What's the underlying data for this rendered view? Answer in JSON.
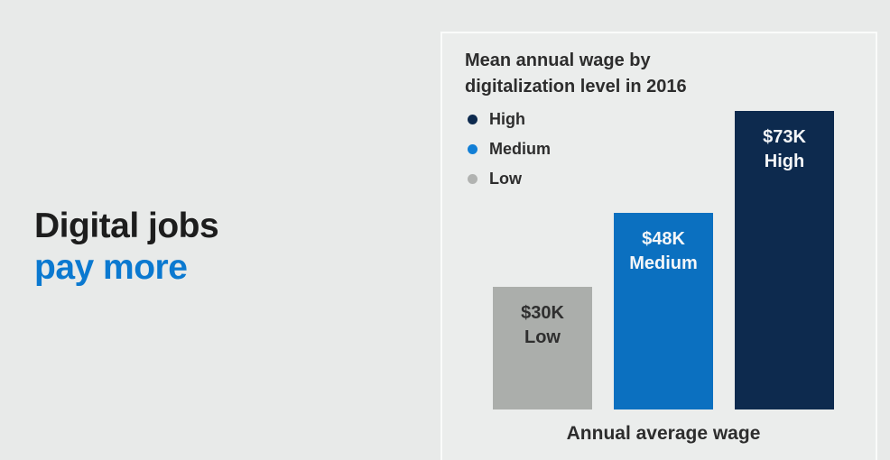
{
  "headline": {
    "line1": "Digital jobs",
    "line2": "pay more",
    "line1_color": "#1d1d1d",
    "line2_color": "#0b79d0"
  },
  "panel": {
    "title_line1": "Mean annual wage by",
    "title_line2": "digitalization level in 2016",
    "legend": [
      {
        "label": "High",
        "color": "#0d2a4e"
      },
      {
        "label": "Medium",
        "color": "#127fd6"
      },
      {
        "label": "Low",
        "color": "#b1b3b1"
      }
    ],
    "axis_label": "Annual average wage"
  },
  "chart_data": {
    "type": "bar",
    "title": "Mean annual wage by digitalization level in 2016",
    "xlabel": "Annual average wage",
    "ylabel": "",
    "ylim": [
      0,
      80000
    ],
    "grid": false,
    "legend_position": "upper-left",
    "legend_entries": [
      "High",
      "Medium",
      "Low"
    ],
    "categories": [
      "Low",
      "Medium",
      "High"
    ],
    "values": [
      30000,
      48000,
      73000
    ],
    "bars": [
      {
        "category": "Low",
        "value": 30000,
        "value_label": "$30K",
        "color": "#abaeab",
        "text_color": "#2f2f2f"
      },
      {
        "category": "Medium",
        "value": 48000,
        "value_label": "$48K",
        "color": "#0b70c0",
        "text_color": "#f4f6f8"
      },
      {
        "category": "High",
        "value": 73000,
        "value_label": "$73K",
        "color": "#0d2a4e",
        "text_color": "#f4f6f8"
      }
    ]
  },
  "colors": {
    "page_bg": "#e8eae9",
    "panel_bg": "#ebedec",
    "panel_border": "#fafbfa",
    "text_dark": "#2d2d2d"
  }
}
